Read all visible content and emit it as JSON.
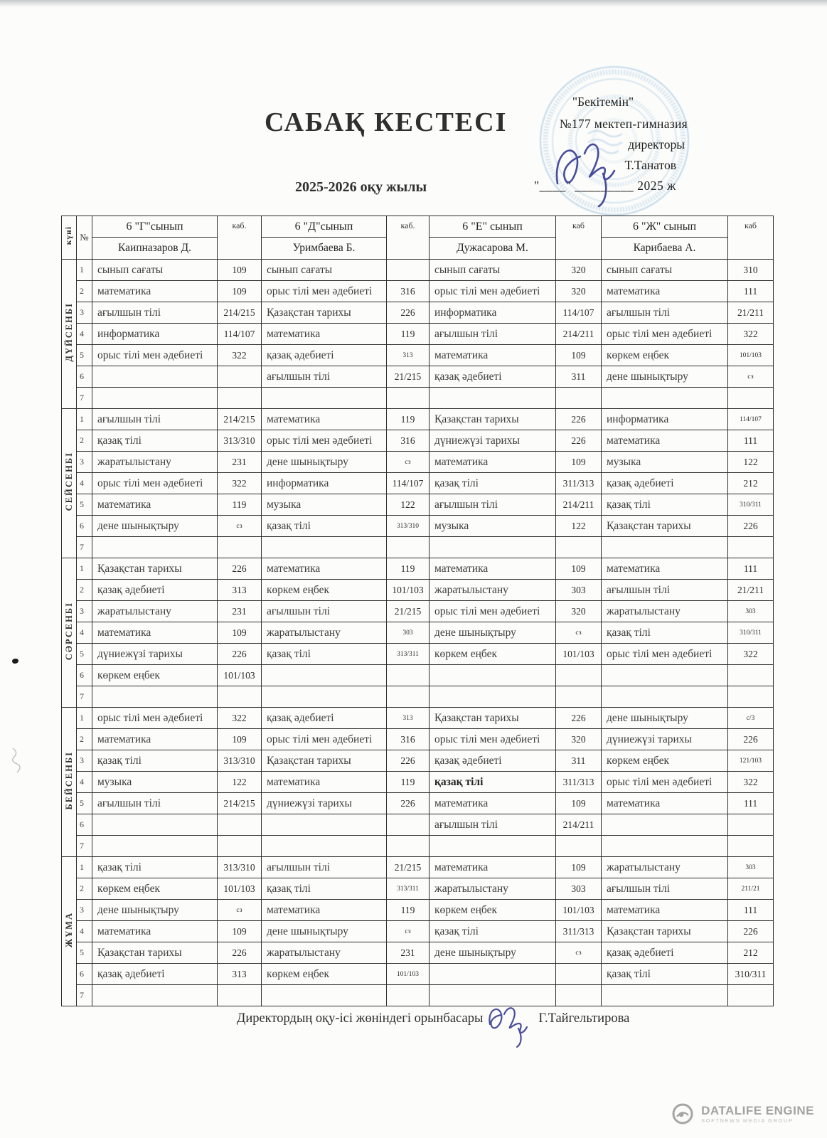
{
  "page": {
    "title": "САБАҚ КЕСТЕСІ",
    "year": "2025-2026 оқу жылы"
  },
  "stamp": {
    "line1": "\"Бекітемін\"",
    "line2": "№177 мектеп-гимназия",
    "line3": "директоры",
    "line4": "Т.Танатов",
    "line5": "\"____\" _________ 2025 ж"
  },
  "colors": {
    "stamp_blue": "#7fb2d9",
    "signature_blue": "#3a3f93",
    "ink": "#3a3a3a",
    "logo_gray": "#a5a5a5"
  },
  "table": {
    "corner_label": "күні",
    "num_label": "№",
    "cab_labels": [
      "каб.",
      "каб.",
      "каб",
      "каб"
    ],
    "classes": [
      {
        "name": "6 \"Г\"сынып",
        "teacher": "Каипназаров Д."
      },
      {
        "name": "6 \"Д\"сынып",
        "teacher": "Уримбаева Б."
      },
      {
        "name": "6 \"Е\" сынып",
        "teacher": "Дужасарова М."
      },
      {
        "name": "6 \"Ж\" сынып",
        "teacher": "Карибаева А."
      }
    ],
    "days": [
      {
        "name": "ДҮЙСЕНБІ",
        "rows": [
          {
            "n": "1",
            "cells": [
              [
                "сынып сағаты",
                "109"
              ],
              [
                "сынып сағаты",
                ""
              ],
              [
                "сынып сағаты",
                "320"
              ],
              [
                "сынып сағаты",
                "310"
              ]
            ]
          },
          {
            "n": "2",
            "cells": [
              [
                "математика",
                "109"
              ],
              [
                "орыс тілі мен әдебиеті",
                "316"
              ],
              [
                "орыс тілі мен әдебиеті",
                "320"
              ],
              [
                "математика",
                "111"
              ]
            ]
          },
          {
            "n": "3",
            "cells": [
              [
                "ағылшын тілі",
                "214/215"
              ],
              [
                "Қазақстан тарихы",
                "226"
              ],
              [
                "информатика",
                "114/107"
              ],
              [
                "ағылшын тілі",
                "21/211"
              ]
            ]
          },
          {
            "n": "4",
            "cells": [
              [
                "информатика",
                "114/107"
              ],
              [
                "математика",
                "119"
              ],
              [
                "ағылшын тілі",
                "214/211"
              ],
              [
                "орыс тілі мен әдебиеті",
                "322"
              ]
            ]
          },
          {
            "n": "5",
            "cells": [
              [
                "орыс тілі мен әдебиеті",
                "322"
              ],
              [
                "қазақ әдебиеті",
                "313",
                "s"
              ],
              [
                "математика",
                "109"
              ],
              [
                "көркем еңбек",
                "101/103",
                "s"
              ]
            ]
          },
          {
            "n": "6",
            "cells": [
              [
                "",
                ""
              ],
              [
                "ағылшын тілі",
                "21/215"
              ],
              [
                "қазақ әдебиеті",
                "311"
              ],
              [
                "дене шынықтыру",
                "сз",
                "s"
              ]
            ]
          },
          {
            "n": "7",
            "cells": [
              [
                "",
                ""
              ],
              [
                "",
                ""
              ],
              [
                "",
                ""
              ],
              [
                "",
                ""
              ]
            ]
          }
        ]
      },
      {
        "name": "СЕЙСЕНБІ",
        "rows": [
          {
            "n": "1",
            "cells": [
              [
                "ағылшын тілі",
                "214/215"
              ],
              [
                "математика",
                "119"
              ],
              [
                "Қазақстан тарихы",
                "226"
              ],
              [
                "информатика",
                "114/107",
                "s"
              ]
            ]
          },
          {
            "n": "2",
            "cells": [
              [
                "қазақ тілі",
                "313/310"
              ],
              [
                "орыс тілі мен әдебиеті",
                "316"
              ],
              [
                "дүниежүзі тарихы",
                "226"
              ],
              [
                "математика",
                "111"
              ]
            ]
          },
          {
            "n": "3",
            "cells": [
              [
                "жаратылыстану",
                "231"
              ],
              [
                "дене шынықтыру",
                "сз",
                "s"
              ],
              [
                "математика",
                "109"
              ],
              [
                "музыка",
                "122"
              ]
            ]
          },
          {
            "n": "4",
            "cells": [
              [
                "орыс тілі мен әдебиеті",
                "322"
              ],
              [
                "информатика",
                "114/107"
              ],
              [
                "қазақ тілі",
                "311/313"
              ],
              [
                "қазақ әдебиеті",
                "212"
              ]
            ]
          },
          {
            "n": "5",
            "cells": [
              [
                "математика",
                "119"
              ],
              [
                "музыка",
                "122"
              ],
              [
                "ағылшын тілі",
                "214/211"
              ],
              [
                "қазақ тілі",
                "310/311",
                "s"
              ]
            ]
          },
          {
            "n": "6",
            "cells": [
              [
                "дене шынықтыру",
                "сз",
                "s"
              ],
              [
                "қазақ тілі",
                "313/310",
                "s"
              ],
              [
                "музыка",
                "122"
              ],
              [
                "Қазақстан тарихы",
                "226"
              ]
            ]
          },
          {
            "n": "7",
            "cells": [
              [
                "",
                ""
              ],
              [
                "",
                ""
              ],
              [
                "",
                ""
              ],
              [
                "",
                ""
              ]
            ]
          }
        ]
      },
      {
        "name": "СӘРСЕНБІ",
        "rows": [
          {
            "n": "1",
            "cells": [
              [
                "Қазақстан тарихы",
                "226"
              ],
              [
                "математика",
                "119"
              ],
              [
                "математика",
                "109"
              ],
              [
                "математика",
                "111"
              ]
            ]
          },
          {
            "n": "2",
            "cells": [
              [
                "қазақ әдебиеті",
                "313"
              ],
              [
                "көркем еңбек",
                "101/103"
              ],
              [
                "жаратылыстану",
                "303"
              ],
              [
                "ағылшын тілі",
                "21/211"
              ]
            ]
          },
          {
            "n": "3",
            "cells": [
              [
                "жаратылыстану",
                "231"
              ],
              [
                "ағылшын тілі",
                "21/215"
              ],
              [
                "орыс тілі мен әдебиеті",
                "320"
              ],
              [
                "жаратылыстану",
                "303",
                "s"
              ]
            ]
          },
          {
            "n": "4",
            "cells": [
              [
                "математика",
                "109"
              ],
              [
                "жаратылыстану",
                "303",
                "s"
              ],
              [
                "дене шынықтыру",
                "сз",
                "s"
              ],
              [
                "қазақ тілі",
                "310/311",
                "s"
              ]
            ]
          },
          {
            "n": "5",
            "cells": [
              [
                "дүниежүзі тарихы",
                "226"
              ],
              [
                "қазақ тілі",
                "313/311",
                "s"
              ],
              [
                "көркем еңбек",
                "101/103"
              ],
              [
                "орыс тілі мен әдебиеті",
                "322"
              ]
            ]
          },
          {
            "n": "6",
            "cells": [
              [
                "көркем еңбек",
                "101/103"
              ],
              [
                "",
                ""
              ],
              [
                "",
                ""
              ],
              [
                "",
                ""
              ]
            ]
          },
          {
            "n": "7",
            "cells": [
              [
                "",
                ""
              ],
              [
                "",
                ""
              ],
              [
                "",
                ""
              ],
              [
                "",
                ""
              ]
            ]
          }
        ]
      },
      {
        "name": "БЕЙСЕНБІ",
        "rows": [
          {
            "n": "1",
            "cells": [
              [
                "орыс тілі мен әдебиеті",
                "322"
              ],
              [
                "қазақ әдебиеті",
                "313",
                "s"
              ],
              [
                "Қазақстан тарихы",
                "226"
              ],
              [
                "дене шынықтыру",
                "с/3",
                "s"
              ]
            ]
          },
          {
            "n": "2",
            "cells": [
              [
                "математика",
                "109"
              ],
              [
                "орыс тілі мен әдебиеті",
                "316"
              ],
              [
                "орыс тілі мен әдебиеті",
                "320"
              ],
              [
                "дүниежүзі тарихы",
                "226"
              ]
            ]
          },
          {
            "n": "3",
            "cells": [
              [
                "қазақ тілі",
                "313/310"
              ],
              [
                "Қазақстан тарихы",
                "226"
              ],
              [
                "қазақ әдебиеті",
                "311"
              ],
              [
                "көркем еңбек",
                "121/103",
                "s"
              ]
            ]
          },
          {
            "n": "4",
            "cells": [
              [
                "музыка",
                "122"
              ],
              [
                "математика",
                "119"
              ],
              [
                "қазақ тілі",
                "311/313",
                "b"
              ],
              [
                "орыс тілі мен әдебиеті",
                "322"
              ]
            ]
          },
          {
            "n": "5",
            "cells": [
              [
                "ағылшын тілі",
                "214/215"
              ],
              [
                "дүниежүзі тарихы",
                "226"
              ],
              [
                "математика",
                "109"
              ],
              [
                "математика",
                "111"
              ]
            ]
          },
          {
            "n": "6",
            "cells": [
              [
                "",
                ""
              ],
              [
                "",
                ""
              ],
              [
                "ағылшын тілі",
                "214/211"
              ],
              [
                "",
                ""
              ]
            ]
          },
          {
            "n": "7",
            "cells": [
              [
                "",
                ""
              ],
              [
                "",
                ""
              ],
              [
                "",
                ""
              ],
              [
                "",
                ""
              ]
            ]
          }
        ]
      },
      {
        "name": "ЖҰМА",
        "rows": [
          {
            "n": "1",
            "cells": [
              [
                "қазақ тілі",
                "313/310"
              ],
              [
                "ағылшын тілі",
                "21/215"
              ],
              [
                "математика",
                "109"
              ],
              [
                "жаратылыстану",
                "303",
                "s"
              ]
            ]
          },
          {
            "n": "2",
            "cells": [
              [
                "көркем еңбек",
                "101/103"
              ],
              [
                "қазақ тілі",
                "313/311",
                "s"
              ],
              [
                "жаратылыстану",
                "303"
              ],
              [
                "ағылшын тілі",
                "211/21",
                "s"
              ]
            ]
          },
          {
            "n": "3",
            "cells": [
              [
                "дене шынықтыру",
                "сз",
                "s"
              ],
              [
                "математика",
                "119"
              ],
              [
                "көркем еңбек",
                "101/103"
              ],
              [
                "математика",
                "111"
              ]
            ]
          },
          {
            "n": "4",
            "cells": [
              [
                "математика",
                "109"
              ],
              [
                "дене шынықтыру",
                "сз",
                "s"
              ],
              [
                "қазақ тілі",
                "311/313"
              ],
              [
                "Қазақстан тарихы",
                "226"
              ]
            ]
          },
          {
            "n": "5",
            "cells": [
              [
                "Қазақстан тарихы",
                "226"
              ],
              [
                "жаратылыстану",
                "231"
              ],
              [
                "дене шынықтыру",
                "сз",
                "s"
              ],
              [
                "қазақ әдебиеті",
                "212"
              ]
            ]
          },
          {
            "n": "6",
            "cells": [
              [
                "қазақ әдебиеті",
                "313"
              ],
              [
                "көркем еңбек",
                "101/103",
                "s"
              ],
              [
                "",
                ""
              ],
              [
                "қазақ тілі",
                "310/311"
              ]
            ]
          },
          {
            "n": "7",
            "cells": [
              [
                "",
                ""
              ],
              [
                "",
                ""
              ],
              [
                "",
                ""
              ],
              [
                "",
                ""
              ]
            ]
          }
        ]
      }
    ]
  },
  "footer": {
    "text": "Директордың оқу-ісі жөніндегі орынбасары",
    "name": "Г.Тайгельтирова"
  },
  "watermark": {
    "line1": "DATALIFE ENGINE",
    "line2": "SOFTNEWS MEDIA GROUP"
  }
}
